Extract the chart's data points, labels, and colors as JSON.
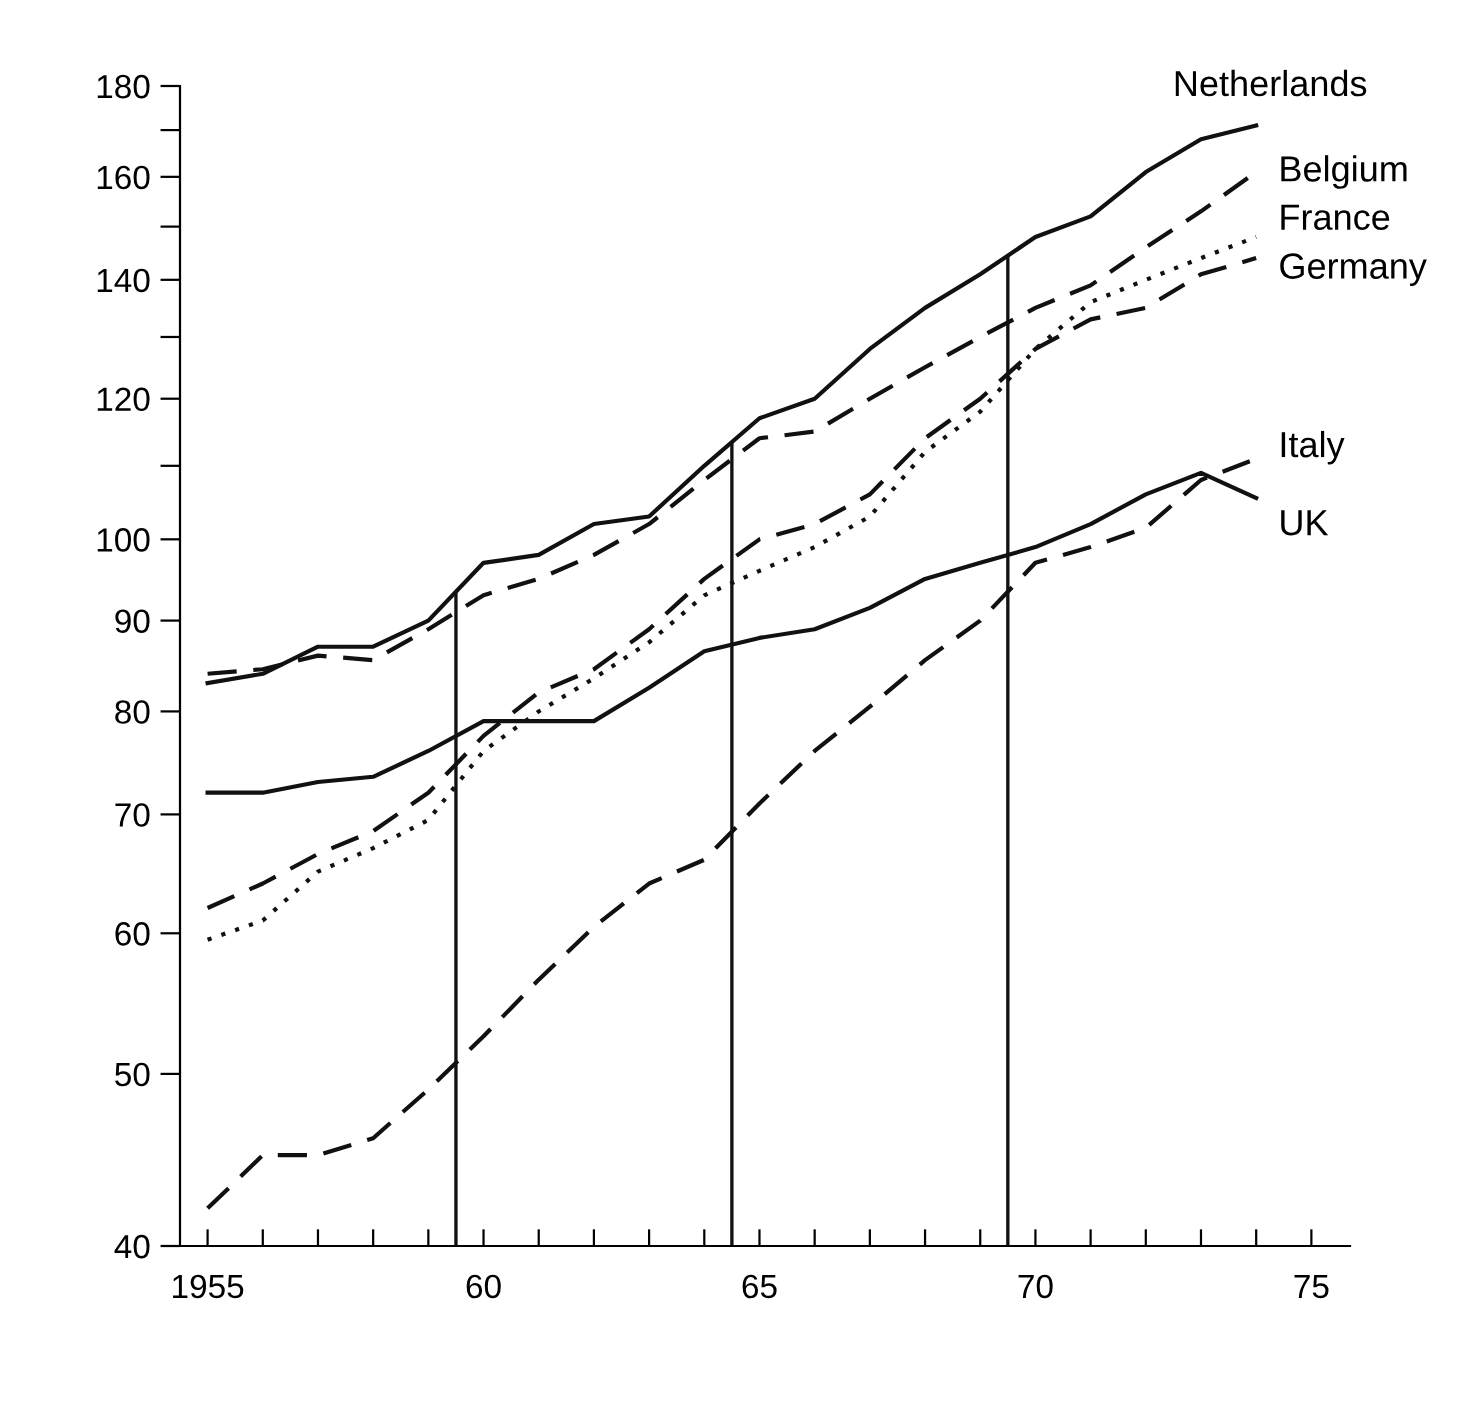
{
  "chart_data": {
    "type": "line",
    "x": [
      1955,
      1956,
      1957,
      1958,
      1959,
      1960,
      1961,
      1962,
      1963,
      1964,
      1965,
      1966,
      1967,
      1968,
      1969,
      1970,
      1971,
      1972,
      1973,
      1974
    ],
    "series": [
      {
        "name": "Netherlands",
        "color": "#111111",
        "line_style": "solid",
        "values": [
          83,
          84,
          87,
          87,
          90,
          97,
          98,
          102,
          103,
          110,
          117,
          120,
          128,
          135,
          141,
          148,
          152,
          161,
          168,
          171
        ]
      },
      {
        "name": "Belgium",
        "color": "#111111",
        "line_style": "dashed",
        "values": [
          84,
          84.5,
          86,
          85.5,
          89,
          93,
          95,
          98,
          102,
          108,
          114,
          115,
          120,
          125,
          130,
          135,
          139,
          146,
          153,
          161
        ]
      },
      {
        "name": "France",
        "color": "#111111",
        "line_style": "dotted",
        "values": [
          59.5,
          61,
          65,
          67,
          69.5,
          76,
          80,
          83.5,
          87.5,
          93,
          96,
          99,
          103,
          112,
          118,
          128,
          136,
          140,
          144,
          148
        ]
      },
      {
        "name": "Germany",
        "color": "#111111",
        "line_style": "dashed",
        "values": [
          62,
          64,
          66.5,
          68.5,
          72,
          77.5,
          82,
          84.5,
          89,
          95,
          100,
          102,
          106,
          114,
          120,
          128,
          133,
          135,
          141,
          144
        ]
      },
      {
        "name": "Italy",
        "color": "#111111",
        "line_style": "dashed",
        "values": [
          42,
          45,
          45,
          46,
          49,
          52.5,
          56.5,
          60.5,
          64,
          66,
          71,
          76,
          80.5,
          85.5,
          90,
          97,
          99,
          101.5,
          108,
          111
        ]
      },
      {
        "name": "UK",
        "color": "#111111",
        "line_style": "solid",
        "values": [
          72,
          72,
          73,
          73.5,
          76,
          79,
          79,
          79,
          82.5,
          86.5,
          88,
          89,
          91.5,
          95,
          97,
          99,
          102,
          106,
          109,
          105.5
        ]
      }
    ],
    "log": "y",
    "xlim": [
      1954.5,
      1975.7
    ],
    "xticks": [
      {
        "value": 1955,
        "label": "1955"
      },
      {
        "value": 1956,
        "label": null
      },
      {
        "value": 1957,
        "label": null
      },
      {
        "value": 1958,
        "label": null
      },
      {
        "value": 1959,
        "label": null
      },
      {
        "value": 1960,
        "label": "60"
      },
      {
        "value": 1961,
        "label": null
      },
      {
        "value": 1962,
        "label": null
      },
      {
        "value": 1963,
        "label": null
      },
      {
        "value": 1964,
        "label": null
      },
      {
        "value": 1965,
        "label": "65"
      },
      {
        "value": 1966,
        "label": null
      },
      {
        "value": 1967,
        "label": null
      },
      {
        "value": 1968,
        "label": null
      },
      {
        "value": 1969,
        "label": null
      },
      {
        "value": 1970,
        "label": "70"
      },
      {
        "value": 1971,
        "label": null
      },
      {
        "value": 1972,
        "label": null
      },
      {
        "value": 1973,
        "label": null
      },
      {
        "value": 1974,
        "label": null
      },
      {
        "value": 1975,
        "label": "75"
      }
    ],
    "ylim": [
      40,
      180
    ],
    "yticks": [
      40,
      50,
      60,
      70,
      80,
      90,
      100,
      {
        "value": 110,
        "label": null
      },
      120,
      {
        "value": 130,
        "label": null
      },
      140,
      {
        "value": 150,
        "label": null
      },
      160,
      {
        "value": 170,
        "label": null
      },
      180
    ],
    "ref_lines": [
      {
        "axis": "x",
        "value": 1959.5,
        "color": "#111111"
      },
      {
        "axis": "x",
        "value": 1964.5,
        "color": "#111111"
      },
      {
        "axis": "x",
        "value": 1969.5,
        "color": "#111111"
      }
    ],
    "grid": false,
    "legend": false
  }
}
